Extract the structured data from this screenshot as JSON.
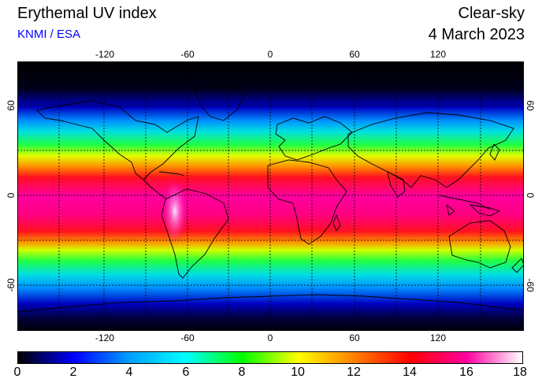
{
  "header": {
    "title": "Erythemal UV index",
    "credit": "KNMI / ESA",
    "mode": "Clear-sky",
    "date": "4 March 2023"
  },
  "map": {
    "lon_ticks": [
      "-120",
      "-60",
      "0",
      "60",
      "120"
    ],
    "lat_ticks": [
      "60",
      "0",
      "-60"
    ],
    "colors": {
      "ocean_polar": "#000010",
      "continent_outline": "#000000",
      "gridline": "#000000"
    }
  },
  "colorbar": {
    "labels": [
      "0",
      "2",
      "4",
      "6",
      "8",
      "10",
      "12",
      "14",
      "16",
      "18"
    ],
    "stops": [
      "#000000",
      "#0000ff",
      "#00a0ff",
      "#00ffff",
      "#00ff00",
      "#ffff00",
      "#ff8000",
      "#ff0000",
      "#ff00a0",
      "#ffffff"
    ]
  }
}
